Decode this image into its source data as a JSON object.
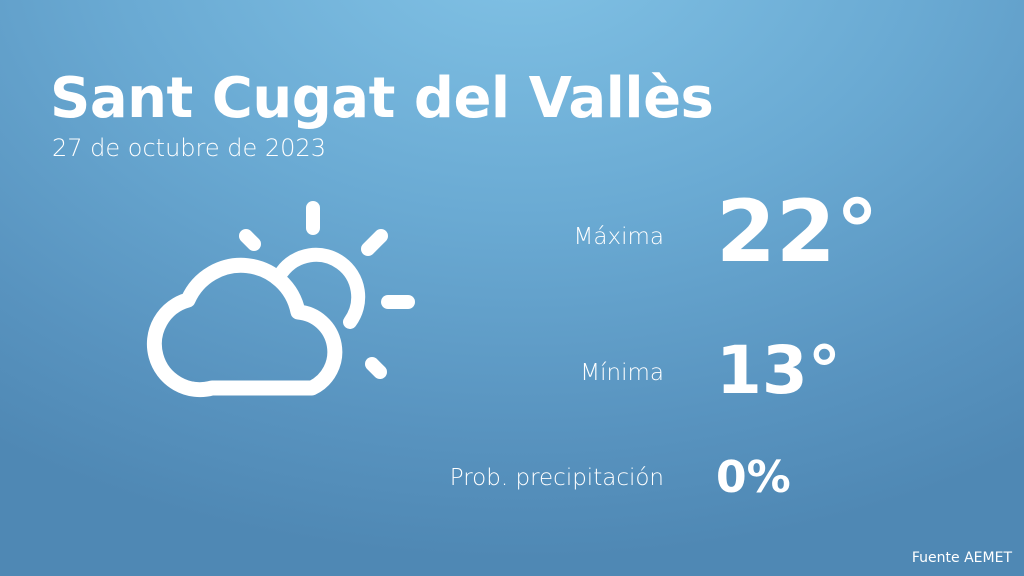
{
  "location": "Sant Cugat del Vallès",
  "date": "27 de octubre de 2023",
  "weather_icon": "partly-cloudy-icon",
  "max": {
    "label": "Máxima",
    "value": "22°"
  },
  "min": {
    "label": "Mínima",
    "value": "13°"
  },
  "precip": {
    "label": "Prob. precipitación",
    "value": "0%"
  },
  "source": "Fuente AEMET"
}
